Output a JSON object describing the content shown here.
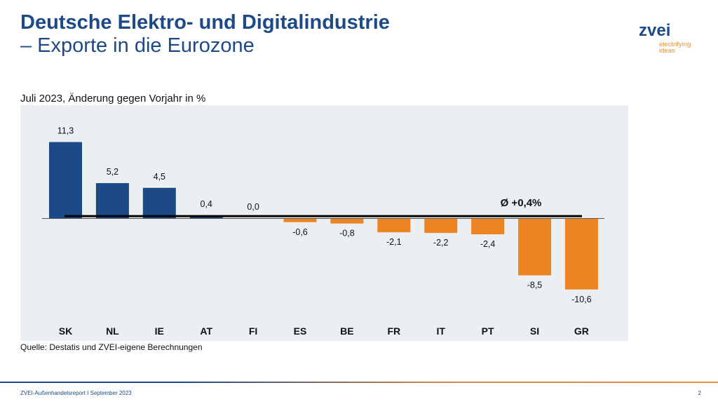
{
  "header": {
    "title_line1": "Deutsche Elektro- und Digitalindustrie",
    "title_line2": "– Exporte in die Eurozone"
  },
  "logo": {
    "wordmark": "zvei",
    "tagline_line1": "electrifying",
    "tagline_line2": "ideas"
  },
  "colors": {
    "brand_blue": "#1d4a86",
    "positive_bar": "#1b4a87",
    "negative_bar": "#ee8421",
    "panel_bg": "#eceff1",
    "brand_orange": "#e8913a"
  },
  "chart_data": {
    "type": "bar",
    "title": "Juli 2023, Änderung gegen Vorjahr in %",
    "xlabel": "",
    "ylabel": "",
    "categories": [
      "SK",
      "NL",
      "IE",
      "AT",
      "FI",
      "ES",
      "BE",
      "FR",
      "IT",
      "PT",
      "SI",
      "GR"
    ],
    "values": [
      11.3,
      5.2,
      4.5,
      0.4,
      0.0,
      -0.6,
      -0.8,
      -2.1,
      -2.2,
      -2.4,
      -8.5,
      -10.6
    ],
    "value_labels": [
      "11,3",
      "5,2",
      "4,5",
      "0,4",
      "0,0",
      "-0,6",
      "-0,8",
      "-2,1",
      "-2,2",
      "-2,4",
      "-8,5",
      "-10,6"
    ],
    "ylim": [
      -11.5,
      12.5
    ],
    "grid": false,
    "average": {
      "value": 0.4,
      "label": "Ø +0,4%"
    }
  },
  "source": "Quelle: Destatis und ZVEI-eigene Berechnungen",
  "footer": {
    "text": "ZVEI-Außenhandelsreport I September 2023",
    "page_number": "2"
  }
}
